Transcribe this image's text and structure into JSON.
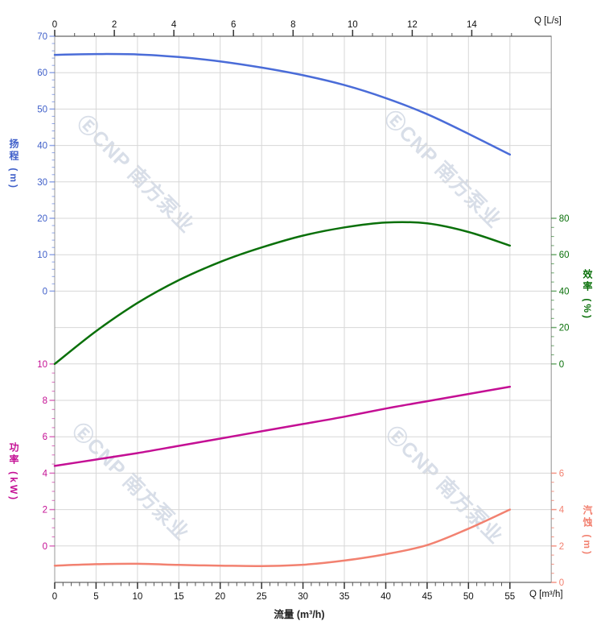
{
  "page": {
    "background": "#ffffff"
  },
  "watermark": {
    "text": "ⒺCNP 南方泵业"
  },
  "chart_data": {
    "type": "line",
    "title": "",
    "legend": "none",
    "grid": {
      "on": true,
      "color": "#d7d7d7",
      "border_color": "#999999",
      "cols": 12,
      "rows": 15
    },
    "bottom_axis": {
      "title": "流量 (m³/h)",
      "unit_label": "Q [m³/h]",
      "ticks": [
        0,
        5,
        10,
        15,
        20,
        25,
        30,
        35,
        40,
        45,
        50,
        55
      ],
      "minor_step": 1,
      "range": [
        0,
        60
      ],
      "color": "#111111"
    },
    "top_axis": {
      "unit_label": "Q [L/s]",
      "ticks": [
        0,
        2,
        4,
        6,
        8,
        10,
        12,
        14
      ],
      "m3h_per_unit": 3.6,
      "tick_extent_m3h": 55,
      "color": "#111111"
    },
    "axes": [
      {
        "id": "head",
        "side": "left",
        "title": "扬程 (m)",
        "color": "#3f5fc9",
        "tick_color": "rgba(74,108,216,0.6)",
        "labels": [
          70,
          60,
          50,
          40,
          30,
          20,
          10,
          0
        ],
        "first_row": 0,
        "units_per_gap": 10,
        "minor_divs": 5
      },
      {
        "id": "eff",
        "side": "right",
        "title": "效率 (%)",
        "color": "#0a700a",
        "tick_color": "rgba(10,112,10,0.6)",
        "labels": [
          80,
          60,
          40,
          20,
          0
        ],
        "first_row": 5,
        "units_per_gap": 20,
        "minor_divs": 4
      },
      {
        "id": "power",
        "side": "left",
        "title": "功率 (kW)",
        "color": "#c40f94",
        "tick_color": "rgba(196,15,148,0.6)",
        "labels": [
          10,
          8,
          6,
          4,
          2,
          0
        ],
        "first_row": 9,
        "units_per_gap": 2,
        "minor_divs": 4
      },
      {
        "id": "npsh",
        "side": "right",
        "title": "汽蚀 (m)",
        "color": "#f28170",
        "tick_color": "rgba(242,129,112,0.85)",
        "labels": [
          6,
          4,
          2,
          0
        ],
        "first_row": 12,
        "units_per_gap": 2,
        "minor_divs": 4
      }
    ],
    "x_m3h": [
      0,
      5,
      10,
      15,
      20,
      25,
      30,
      35,
      40,
      45,
      50,
      55
    ],
    "series": [
      {
        "id": "head",
        "name": "扬程",
        "unit": "m",
        "color": "#4a6cd8",
        "axis": "head",
        "values": [
          64.9,
          65.1,
          65.0,
          64.3,
          63.1,
          61.4,
          59.3,
          56.6,
          53.0,
          48.6,
          43.2,
          37.5
        ]
      },
      {
        "id": "eff",
        "name": "效率",
        "unit": "%",
        "color": "#0a700a",
        "axis": "eff",
        "values": [
          0,
          18,
          33.5,
          46,
          56,
          64,
          70.5,
          75,
          77.7,
          77.2,
          72.5,
          65
        ]
      },
      {
        "id": "power",
        "name": "功率",
        "unit": "kW",
        "color": "#c40f94",
        "axis": "power",
        "values": [
          4.4,
          4.75,
          5.1,
          5.5,
          5.9,
          6.3,
          6.7,
          7.1,
          7.55,
          7.95,
          8.35,
          8.75
        ]
      },
      {
        "id": "npsh",
        "name": "汽蚀",
        "unit": "m",
        "color": "#f28170",
        "axis": "npsh",
        "values": [
          0.92,
          1.0,
          1.02,
          0.96,
          0.92,
          0.9,
          0.97,
          1.2,
          1.55,
          2.05,
          2.95,
          4.0
        ]
      }
    ]
  }
}
